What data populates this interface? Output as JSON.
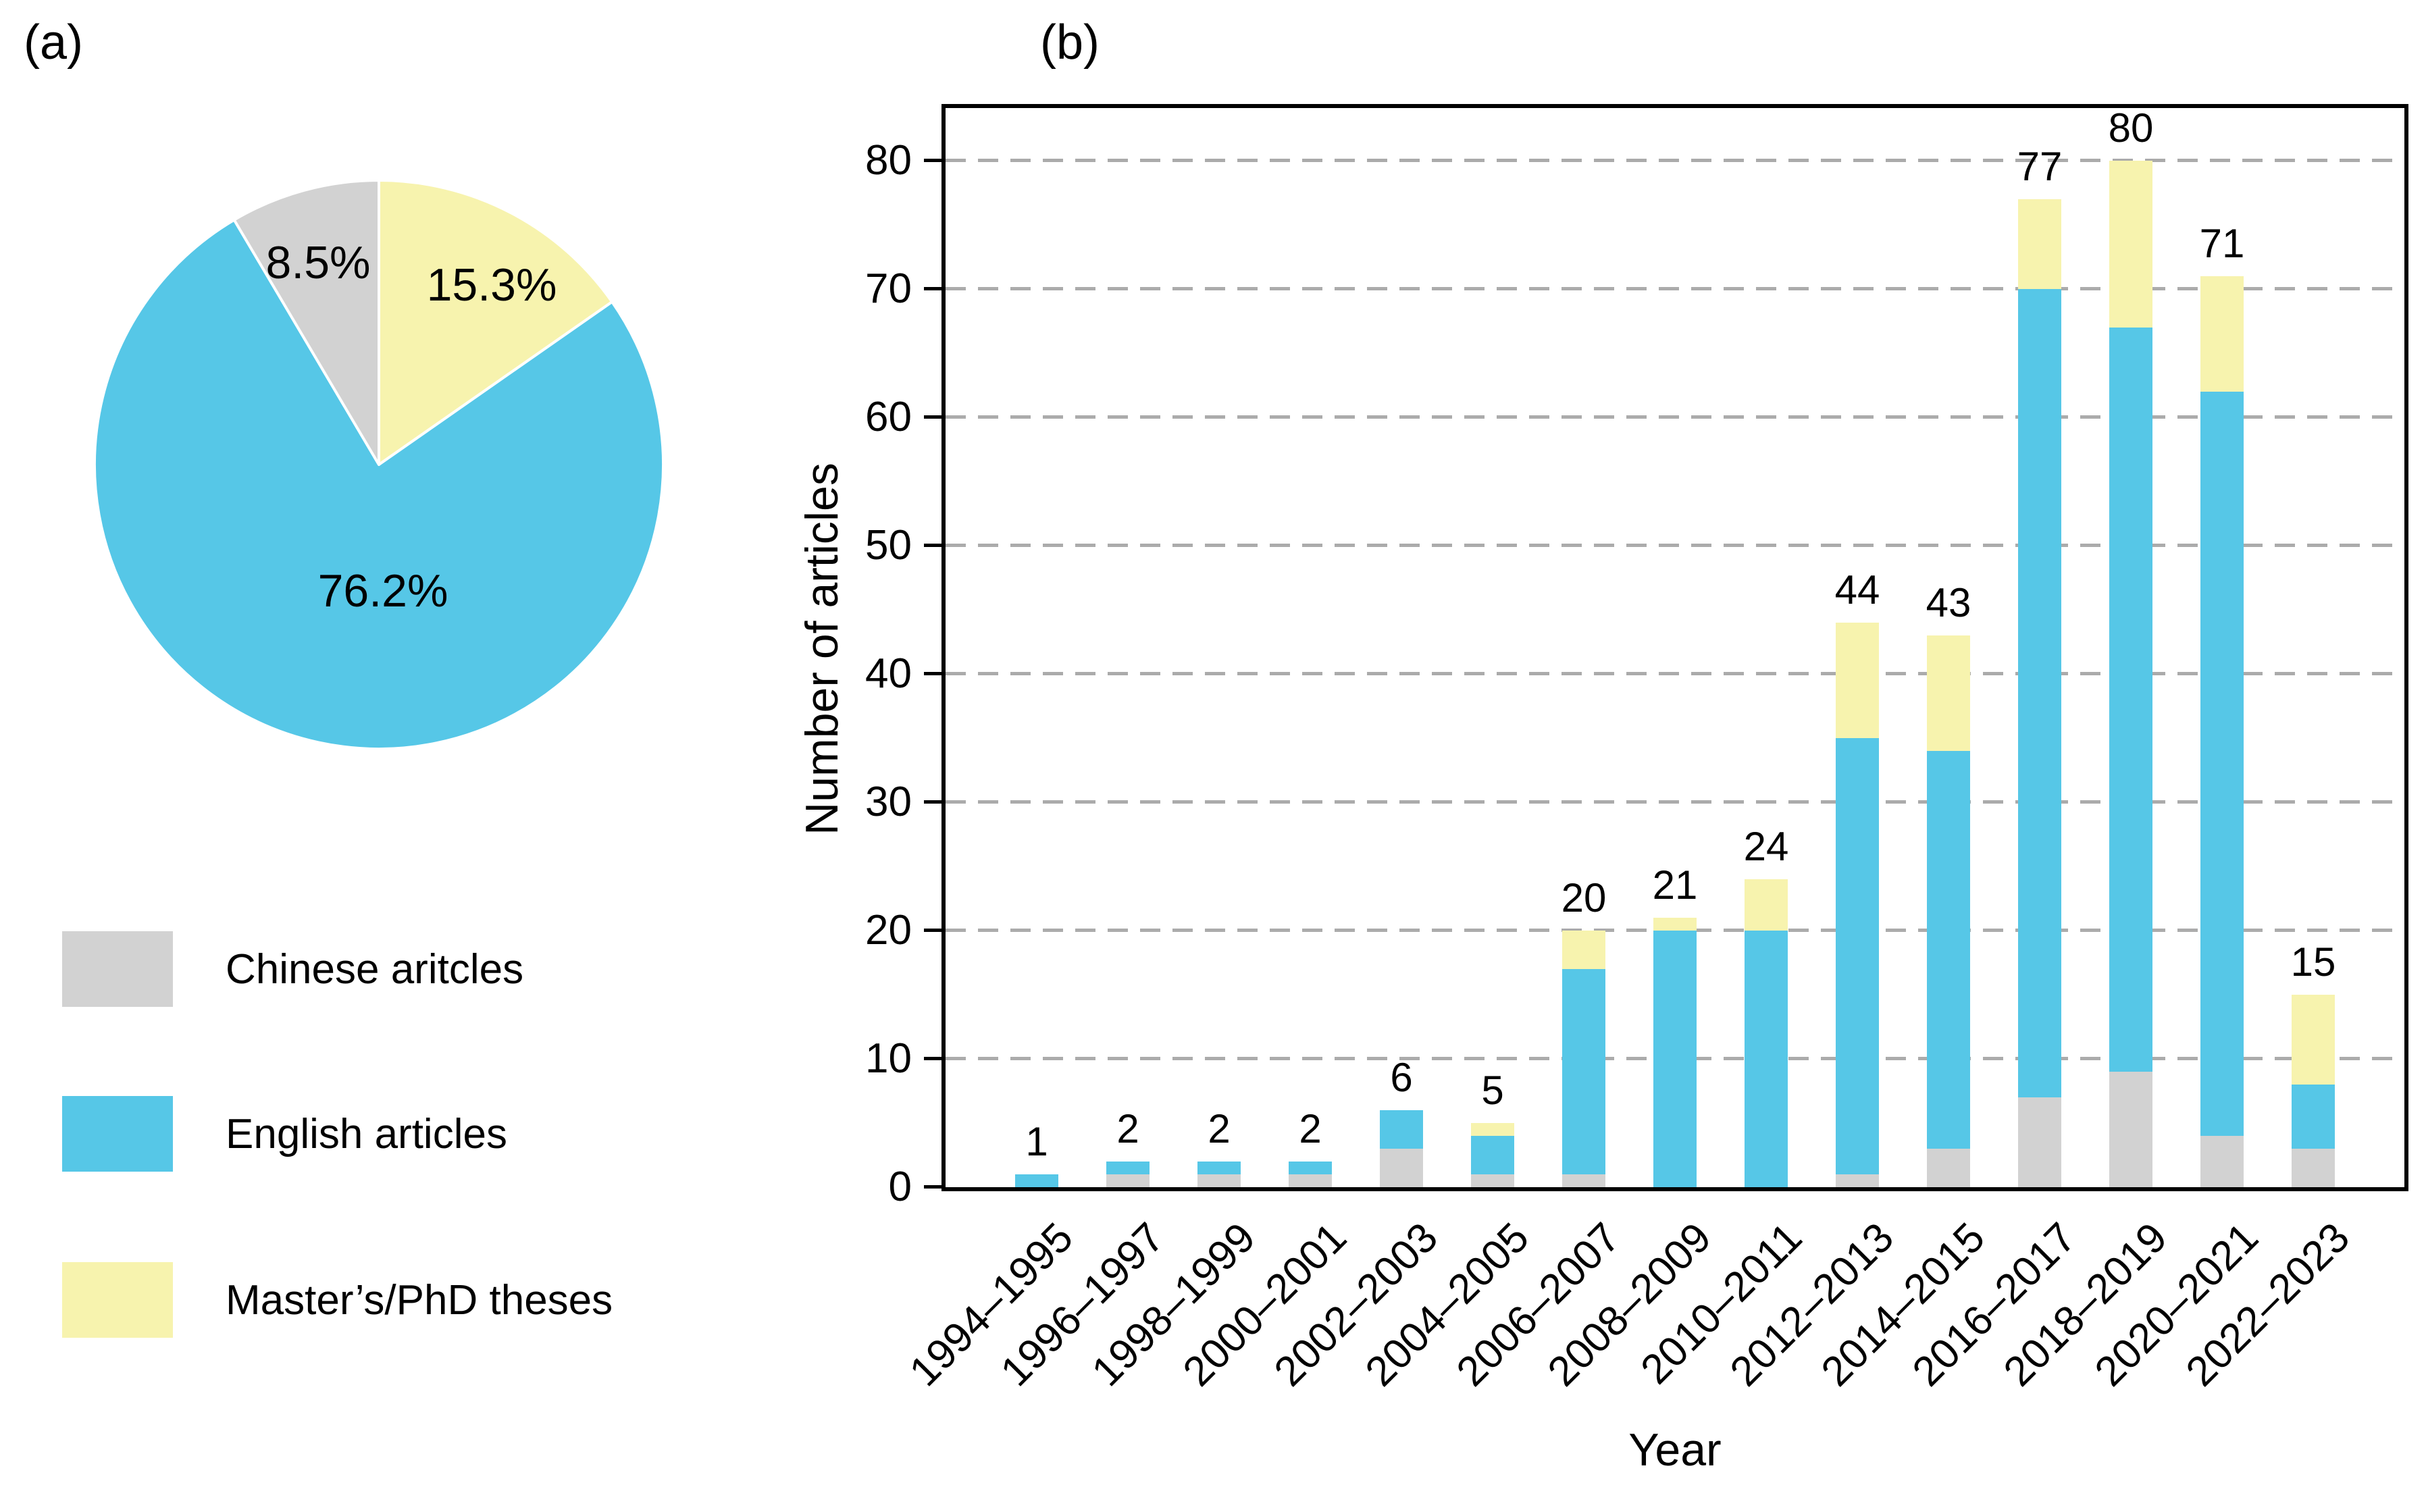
{
  "figure": {
    "panel_a_label": "(a)",
    "panel_b_label": "(b)"
  },
  "legend": {
    "items": [
      {
        "label": "Chinese aritcles",
        "color": "#D2D2D2"
      },
      {
        "label": "English articles",
        "color": "#56C7E7"
      },
      {
        "label": "Master’s/PhD theses",
        "color": "#F7F3AE"
      }
    ]
  },
  "chart_data": [
    {
      "type": "pie",
      "panel": "a",
      "start": "12 o'clock",
      "direction": "clockwise",
      "slices": [
        {
          "label": "Master’s/PhD theses",
          "value_pct": 15.3,
          "display": "15.3%",
          "color": "#F7F3AE"
        },
        {
          "label": "English articles",
          "value_pct": 76.2,
          "display": "76.2%",
          "color": "#56C7E7"
        },
        {
          "label": "Chinese aritcles",
          "value_pct": 8.5,
          "display": "8.5%",
          "color": "#D2D2D2"
        }
      ]
    },
    {
      "type": "bar",
      "panel": "b",
      "stacked": true,
      "categories": [
        "1994–1995",
        "1996–1997",
        "1998–1999",
        "2000–2001",
        "2002–2003",
        "2004–2005",
        "2006–2007",
        "2008–2009",
        "2010–2011",
        "2012–2013",
        "2014–2015",
        "2016–2017",
        "2018–2019",
        "2020–2021",
        "2022–2023"
      ],
      "series": [
        {
          "name": "Chinese aritcles",
          "color": "#D2D2D2",
          "values": [
            0,
            1,
            1,
            1,
            3,
            1,
            1,
            0,
            0,
            1,
            3,
            7,
            9,
            4,
            3
          ]
        },
        {
          "name": "English articles",
          "color": "#56C7E7",
          "values": [
            1,
            1,
            1,
            1,
            3,
            3,
            16,
            20,
            20,
            34,
            31,
            63,
            58,
            58,
            5
          ]
        },
        {
          "name": "Master’s/PhD theses",
          "color": "#F7F3AE",
          "values": [
            0,
            0,
            0,
            0,
            0,
            1,
            3,
            1,
            4,
            9,
            9,
            7,
            13,
            9,
            7
          ]
        }
      ],
      "totals": [
        1,
        2,
        2,
        2,
        6,
        5,
        20,
        21,
        24,
        44,
        43,
        77,
        80,
        71,
        15
      ],
      "xlabel": "Year",
      "ylabel": "Number of articles",
      "ylim": [
        0,
        80
      ],
      "yticks": [
        0,
        10,
        20,
        30,
        40,
        50,
        60,
        70,
        80
      ],
      "grid": "horizontal dashed gray lines at each y tick",
      "legend_position": "lower left, outside plot under pie"
    }
  ]
}
